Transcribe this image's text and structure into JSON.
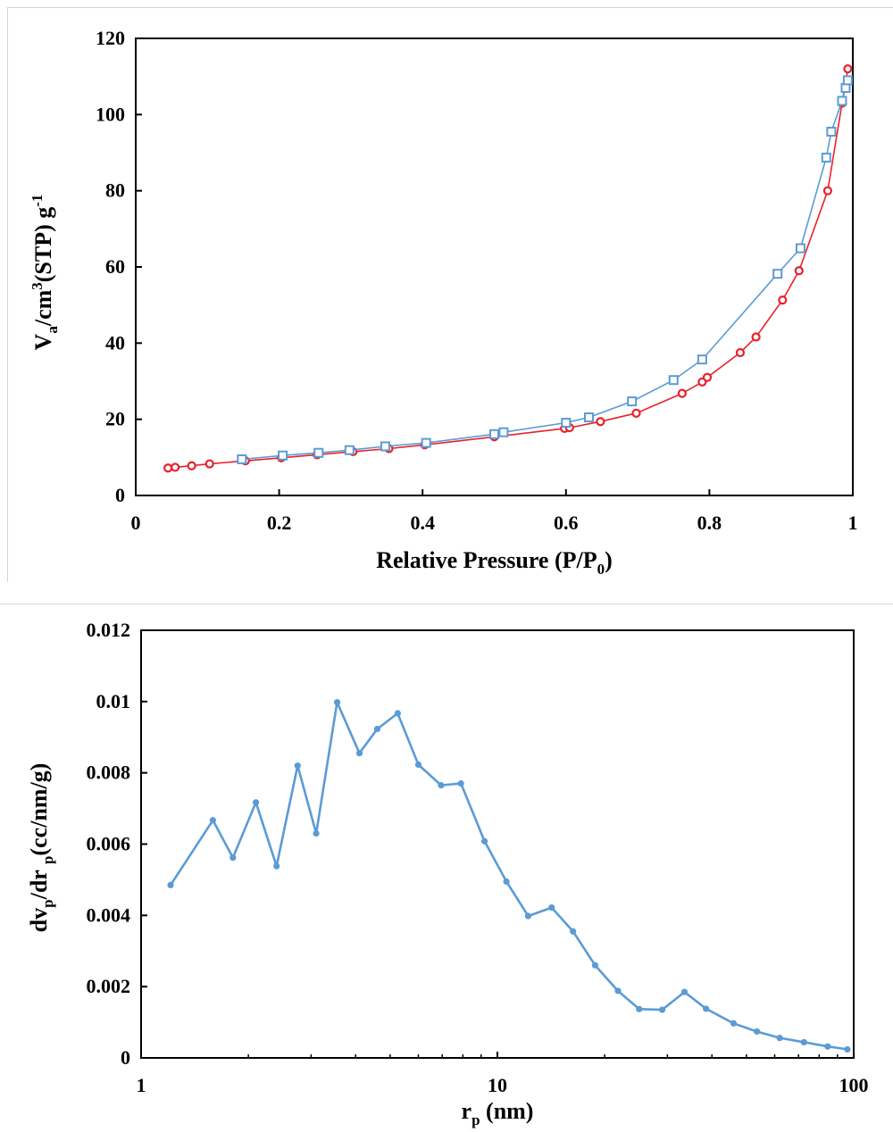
{
  "chart_data": [
    {
      "type": "line",
      "title": "",
      "xlabel": {
        "main": "Relative Pressure (P/P",
        "sub": "0",
        "tail": ")"
      },
      "ylabel": {
        "v": "V",
        "a": "a",
        "mid": "/cm",
        "sup3": "3",
        "rest": "(STP) g",
        "sup": "-1"
      },
      "xlim": [
        0,
        1
      ],
      "ylim": [
        0,
        120
      ],
      "xticks": [
        0,
        0.2,
        0.4,
        0.6,
        0.8,
        1
      ],
      "xtick_labels": [
        "0",
        "0.2",
        "0.4",
        "0.6",
        "0.8",
        "1"
      ],
      "yticks": [
        0,
        20,
        40,
        60,
        80,
        100,
        120
      ],
      "ytick_labels": [
        "0",
        "20",
        "40",
        "60",
        "80",
        "100",
        "120"
      ],
      "grid": false,
      "series": [
        {
          "marker": "circle",
          "color": "#e8222a",
          "x": [
            0.045,
            0.055,
            0.078,
            0.103,
            0.153,
            0.203,
            0.253,
            0.303,
            0.353,
            0.403,
            0.5,
            0.598,
            0.605,
            0.648,
            0.698,
            0.762,
            0.79,
            0.797,
            0.843,
            0.865,
            0.902,
            0.925,
            0.965,
            0.985,
            0.993
          ],
          "y": [
            7.2,
            7.4,
            7.8,
            8.3,
            9.1,
            9.9,
            10.7,
            11.5,
            12.3,
            13.3,
            15.4,
            17.6,
            17.8,
            19.4,
            21.6,
            26.8,
            29.8,
            31.0,
            37.5,
            41.6,
            51.3,
            59.0,
            80.0,
            103.0,
            112.0
          ]
        },
        {
          "marker": "square",
          "color": "#5b9bd5",
          "x": [
            0.148,
            0.205,
            0.255,
            0.298,
            0.348,
            0.405,
            0.5,
            0.513,
            0.6,
            0.632,
            0.692,
            0.75,
            0.79,
            0.895,
            0.927,
            0.963,
            0.97,
            0.985,
            0.99,
            0.993
          ],
          "y": [
            9.5,
            10.5,
            11.2,
            11.9,
            12.9,
            13.8,
            16.1,
            16.6,
            19.1,
            20.5,
            24.7,
            30.3,
            35.7,
            58.2,
            64.9,
            88.7,
            95.5,
            103.6,
            107.0,
            109.0
          ]
        }
      ]
    },
    {
      "type": "line",
      "title": "",
      "xscale": "log",
      "xlabel": {
        "main": "r",
        "sub": "p",
        "tail": " (nm)"
      },
      "ylabel": {
        "dv": "dv",
        "sub1": "p",
        "mid": "/dr ",
        "sub2": "p",
        "rest": "(cc/nm/g)"
      },
      "xlim": [
        1,
        100
      ],
      "ylim": [
        0,
        0.012
      ],
      "xticks": [
        1,
        10,
        100
      ],
      "xtick_labels": [
        "1",
        "10",
        "100"
      ],
      "yticks": [
        0,
        0.002,
        0.004,
        0.006,
        0.008,
        0.01,
        0.012
      ],
      "ytick_labels": [
        "0",
        "0.002",
        "0.004",
        "0.006",
        "0.008",
        "0.01",
        "0.012"
      ],
      "grid": false,
      "series": [
        {
          "marker": "dot",
          "color": "#5b9bd5",
          "x": [
            1.21,
            1.59,
            1.81,
            2.1,
            2.4,
            2.75,
            3.1,
            3.55,
            4.1,
            4.6,
            5.25,
            6.0,
            6.95,
            7.9,
            9.2,
            10.6,
            12.2,
            14.2,
            16.3,
            18.8,
            21.8,
            25.0,
            29.0,
            33.5,
            38.5,
            46.0,
            53.5,
            62.0,
            72.5,
            84.5,
            96.0
          ],
          "y": [
            0.00485,
            0.00667,
            0.00562,
            0.00717,
            0.00538,
            0.0082,
            0.0063,
            0.00998,
            0.00855,
            0.00923,
            0.00967,
            0.00823,
            0.00765,
            0.0077,
            0.00608,
            0.00495,
            0.00398,
            0.00422,
            0.00355,
            0.0026,
            0.00188,
            0.00137,
            0.00135,
            0.00185,
            0.00138,
            0.00097,
            0.00074,
            0.00056,
            0.00044,
            0.00032,
            0.00024
          ]
        }
      ]
    }
  ]
}
